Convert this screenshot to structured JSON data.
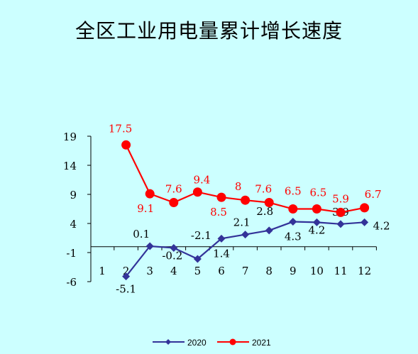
{
  "chart_data": {
    "type": "line",
    "title": "全区工业用电量累计增长速度",
    "xlabel": "",
    "ylabel": "",
    "categories": [
      "1",
      "2",
      "3",
      "4",
      "5",
      "6",
      "7",
      "8",
      "9",
      "10",
      "11",
      "12"
    ],
    "yticks": [
      "19",
      "14",
      "9",
      "4",
      "-1",
      "-6"
    ],
    "ylim": [
      -6,
      19
    ],
    "grid": false,
    "legend_position": "bottom",
    "series": [
      {
        "name": "2020",
        "color": "#333399",
        "marker": "diamond",
        "values": [
          null,
          -5.1,
          0.1,
          -0.2,
          -2.1,
          1.4,
          2.1,
          2.8,
          4.3,
          4.2,
          3.9,
          4.2
        ],
        "labels": [
          "",
          "-5.1",
          "0.1",
          "-0.2",
          "-2.1",
          "1.4",
          "2.1",
          "2.8",
          "4.3",
          "4.2",
          "3.9",
          "4.2"
        ]
      },
      {
        "name": "2021",
        "color": "#ff0000",
        "marker": "circle",
        "values": [
          null,
          17.5,
          9.1,
          7.6,
          9.4,
          8.5,
          8.0,
          7.6,
          6.5,
          6.5,
          5.9,
          6.7
        ],
        "labels": [
          "",
          "17.5",
          "9.1",
          "7.6",
          "9.4",
          "8.5",
          "8",
          "7.6",
          "6.5",
          "6.5",
          "5.9",
          "6.7"
        ]
      }
    ]
  }
}
